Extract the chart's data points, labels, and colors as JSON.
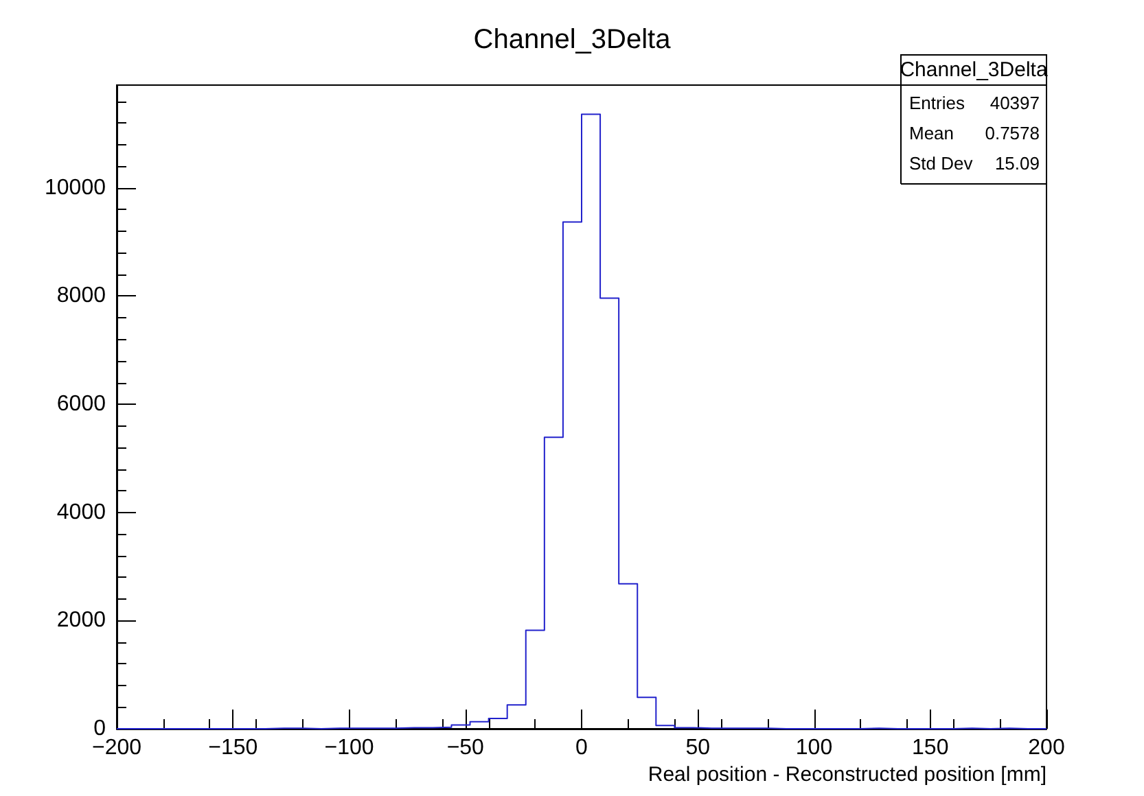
{
  "chart_data": {
    "type": "histogram",
    "title": "Channel_3Delta",
    "xlabel": "Real position - Reconstructed position [mm]",
    "bins": [
      -200,
      -192,
      -184,
      -176,
      -168,
      -160,
      -152,
      -144,
      -136,
      -128,
      -120,
      -112,
      -104,
      -96,
      -88,
      -80,
      -72,
      -64,
      -56,
      -48,
      -40,
      -32,
      -24,
      -16,
      -8,
      0,
      8,
      16,
      24,
      32,
      40,
      48,
      56,
      64,
      72,
      80,
      88,
      96,
      104,
      112,
      120,
      128,
      136,
      144,
      152,
      160,
      168,
      176,
      184,
      192,
      200
    ],
    "values": [
      0,
      0,
      0,
      0,
      0,
      0,
      0,
      0,
      10,
      10,
      0,
      10,
      10,
      10,
      10,
      20,
      20,
      30,
      70,
      130,
      190,
      440,
      1820,
      5390,
      9370,
      11360,
      7960,
      2680,
      580,
      60,
      20,
      10,
      10,
      10,
      10,
      0,
      0,
      0,
      0,
      0,
      10,
      0,
      0,
      0,
      0,
      10,
      0,
      10,
      0,
      0
    ],
    "color": "#2222cc",
    "xlim": [
      -200,
      200
    ],
    "xticks": [
      -200,
      -150,
      -100,
      -50,
      0,
      50,
      100,
      150,
      200
    ],
    "ylim": [
      0,
      11900
    ],
    "yticks": [
      0,
      2000,
      4000,
      6000,
      8000,
      10000
    ],
    "annotations": [
      "Channel_3Delta",
      "Entries 40397",
      "Mean 0.7578",
      "Std Dev 15.09"
    ]
  }
}
